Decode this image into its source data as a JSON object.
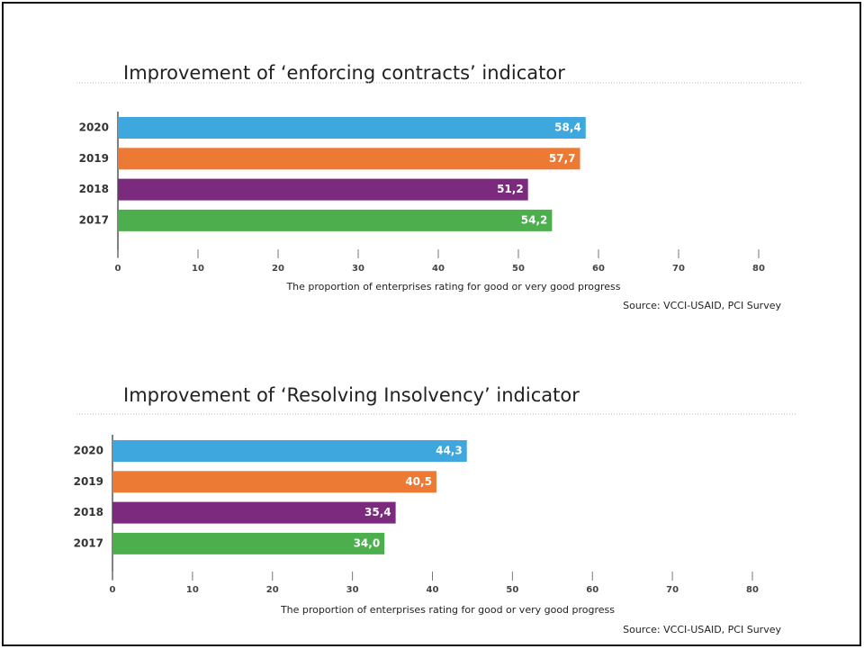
{
  "chart_data": [
    {
      "type": "bar",
      "orientation": "horizontal",
      "title": "Improvement of ‘enforcing contracts’ indicator",
      "categories": [
        "2020",
        "2019",
        "2018",
        "2017"
      ],
      "values": [
        58.4,
        57.7,
        51.2,
        54.2
      ],
      "value_labels": [
        "58,4",
        "57,7",
        "51,2",
        "54,2"
      ],
      "colors": [
        "#3ea8de",
        "#ec7a35",
        "#7c2a7e",
        "#4cae4c"
      ],
      "xlim": [
        0,
        80
      ],
      "xticks": [
        0,
        10,
        20,
        30,
        40,
        50,
        60,
        70,
        80
      ],
      "xlabel": "The proportion of enterprises rating for good or very good progress",
      "source": "Source: VCCI-USAID, PCI Survey"
    },
    {
      "type": "bar",
      "orientation": "horizontal",
      "title": "Improvement of ‘Resolving Insolvency’ indicator",
      "categories": [
        "2020",
        "2019",
        "2018",
        "2017"
      ],
      "values": [
        44.3,
        40.5,
        35.4,
        34.0
      ],
      "value_labels": [
        "44,3",
        "40,5",
        "35,4",
        "34,0"
      ],
      "colors": [
        "#3ea8de",
        "#ec7a35",
        "#7c2a7e",
        "#4cae4c"
      ],
      "xlim": [
        0,
        80
      ],
      "xticks": [
        0,
        10,
        20,
        30,
        40,
        50,
        60,
        70,
        80
      ],
      "xlabel": "The proportion of enterprises rating for good or very good progress",
      "source": "Source: VCCI-USAID, PCI Survey"
    }
  ]
}
